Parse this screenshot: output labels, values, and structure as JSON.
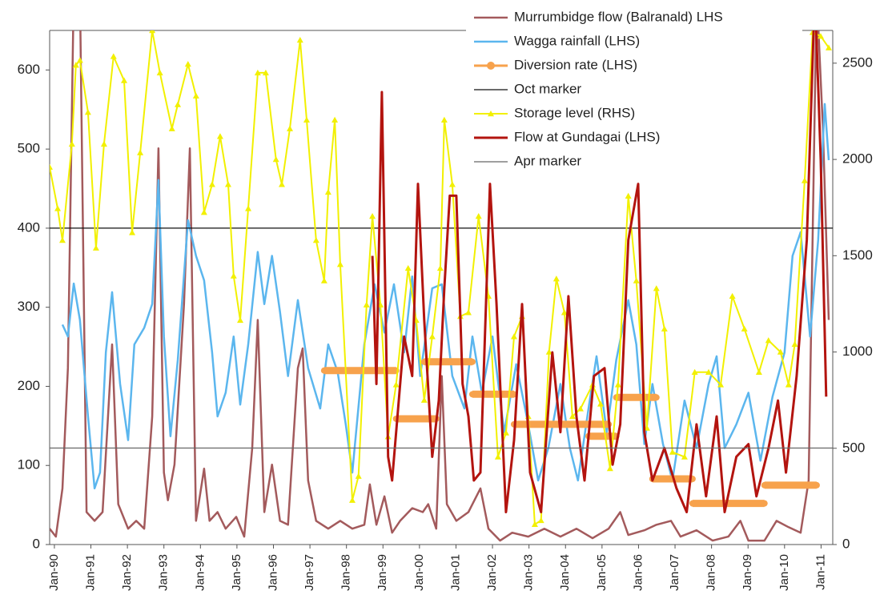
{
  "chart_data": {
    "type": "line",
    "xlim": [
      1989.87,
      2011.32
    ],
    "ylim": [
      0,
      650
    ],
    "y2lim": [
      0,
      2670
    ],
    "yticks": [
      0,
      100,
      200,
      300,
      400,
      500,
      600
    ],
    "y2ticks": [
      0,
      500,
      1000,
      1500,
      2000,
      2500
    ],
    "xticks": [
      {
        "value": 1990,
        "label": "Jan-90"
      },
      {
        "value": 1991,
        "label": "Jan-91"
      },
      {
        "value": 1992,
        "label": "Jan-92"
      },
      {
        "value": 1993,
        "label": "Jan-93"
      },
      {
        "value": 1994,
        "label": "Jan-94"
      },
      {
        "value": 1995,
        "label": "Jan-95"
      },
      {
        "value": 1996,
        "label": "Jan-96"
      },
      {
        "value": 1997,
        "label": "Jan-97"
      },
      {
        "value": 1998,
        "label": "Jan-98"
      },
      {
        "value": 1999,
        "label": "Jan-99"
      },
      {
        "value": 2000,
        "label": "Jan-00"
      },
      {
        "value": 2001,
        "label": "Jan-01"
      },
      {
        "value": 2002,
        "label": "Jan-02"
      },
      {
        "value": 2003,
        "label": "Jan-03"
      },
      {
        "value": 2004,
        "label": "Jan-04"
      },
      {
        "value": 2005,
        "label": "Jan-05"
      },
      {
        "value": 2006,
        "label": "Jan-06"
      },
      {
        "value": 2007,
        "label": "Jan-07"
      },
      {
        "value": 2008,
        "label": "Jan-08"
      },
      {
        "value": 2009,
        "label": "Jan-09"
      },
      {
        "value": 2010,
        "label": "Jan-10"
      },
      {
        "value": 2011,
        "label": "Jan-11"
      }
    ],
    "legend": "upper right",
    "series": [
      {
        "name": "Murrumbidge flow (Balranald) LHS",
        "color": "#a35a5c",
        "x": [
          1989.87,
          1990.04,
          1990.22,
          1990.37,
          1990.53,
          1990.7,
          1990.88,
          1991.1,
          1991.32,
          1991.58,
          1991.75,
          1992.02,
          1992.24,
          1992.46,
          1992.68,
          1992.85,
          1993.0,
          1993.11,
          1993.29,
          1993.55,
          1993.71,
          1993.88,
          1994.1,
          1994.25,
          1994.47,
          1994.69,
          1994.98,
          1995.2,
          1995.42,
          1995.57,
          1995.75,
          1995.96,
          1996.18,
          1996.4,
          1996.67,
          1996.8,
          1996.95,
          1997.17,
          1997.5,
          1997.83,
          1998.16,
          1998.49,
          1998.64,
          1998.82,
          1999.04,
          1999.25,
          1999.47,
          1999.8,
          2000.09,
          2000.24,
          2000.46,
          2000.61,
          2000.75,
          2001.01,
          2001.34,
          2001.67,
          2001.89,
          2002.21,
          2002.54,
          2002.98,
          2003.42,
          2003.86,
          2004.3,
          2004.74,
          2005.18,
          2005.5,
          2005.72,
          2006.16,
          2006.49,
          2006.89,
          2007.15,
          2007.59,
          2008.03,
          2008.46,
          2008.79,
          2009.01,
          2009.45,
          2009.78,
          2010.11,
          2010.44,
          2010.66,
          2010.88,
          2011.05,
          2011.21
        ],
        "values": [
          20,
          10,
          71,
          223,
          700,
          700,
          41,
          30,
          41,
          253,
          51,
          20,
          30,
          20,
          162,
          501,
          91,
          56,
          101,
          304,
          501,
          30,
          96,
          30,
          41,
          20,
          35,
          10,
          122,
          284,
          41,
          101,
          30,
          25,
          223,
          248,
          81,
          30,
          20,
          30,
          20,
          25,
          76,
          25,
          61,
          15,
          30,
          46,
          41,
          51,
          20,
          213,
          51,
          30,
          41,
          71,
          20,
          5,
          15,
          10,
          20,
          10,
          20,
          8,
          20,
          41,
          12,
          18,
          25,
          30,
          10,
          18,
          5,
          10,
          30,
          5,
          5,
          30,
          22,
          15,
          81,
          700,
          527,
          284
        ]
      },
      {
        "name": "Wagga rainfall (LHS)",
        "color": "#5bb6ee",
        "x": [
          1990.22,
          1990.37,
          1990.53,
          1990.7,
          1990.92,
          1991.1,
          1991.25,
          1991.41,
          1991.58,
          1991.8,
          1992.02,
          1992.19,
          1992.46,
          1992.68,
          1992.85,
          1993.0,
          1993.18,
          1993.38,
          1993.66,
          1993.88,
          1994.1,
          1994.32,
          1994.47,
          1994.69,
          1994.91,
          1995.09,
          1995.31,
          1995.57,
          1995.75,
          1995.96,
          1996.18,
          1996.4,
          1996.67,
          1996.95,
          1997.28,
          1997.5,
          1997.76,
          1997.98,
          1998.16,
          1998.49,
          1998.77,
          1999.04,
          1999.3,
          1999.58,
          1999.8,
          2000.02,
          2000.35,
          2000.61,
          2000.9,
          2001.23,
          2001.45,
          2001.71,
          2002.0,
          2002.32,
          2002.65,
          2002.98,
          2003.25,
          2003.53,
          2003.86,
          2004.12,
          2004.34,
          2004.63,
          2004.85,
          2005.13,
          2005.39,
          2005.72,
          2005.94,
          2006.16,
          2006.38,
          2006.67,
          2006.93,
          2007.26,
          2007.59,
          2007.92,
          2008.14,
          2008.36,
          2008.68,
          2009.01,
          2009.34,
          2009.67,
          2010.0,
          2010.22,
          2010.44,
          2010.7,
          2010.92,
          2011.1,
          2011.21
        ],
        "values": [
          278,
          263,
          330,
          284,
          162,
          71,
          91,
          243,
          319,
          203,
          132,
          253,
          274,
          304,
          461,
          263,
          137,
          233,
          410,
          365,
          334,
          243,
          162,
          192,
          263,
          177,
          253,
          370,
          304,
          365,
          294,
          213,
          309,
          223,
          172,
          253,
          218,
          152,
          91,
          253,
          329,
          268,
          329,
          243,
          339,
          213,
          324,
          329,
          213,
          172,
          263,
          192,
          263,
          142,
          228,
          152,
          81,
          122,
          203,
          122,
          81,
          172,
          238,
          142,
          233,
          309,
          253,
          127,
          203,
          127,
          81,
          182,
          122,
          203,
          238,
          122,
          152,
          192,
          106,
          187,
          243,
          365,
          395,
          263,
          385,
          557,
          486
        ]
      },
      {
        "name": "Diversion rate (LHS)",
        "color": "#f7a24c",
        "marker": "circle",
        "x": [
          1997.39,
          1999.36,
          1999.4,
          1999.36,
          2000.46,
          2000.3,
          2000.13,
          2001.45,
          2001.5,
          2001.45,
          2002.59,
          2002.6,
          2002.59,
          2005.18,
          2005.2,
          2004.63,
          2005.39,
          2005.5,
          2005.39,
          2006.49,
          2006.5,
          2006.38,
          2007.48,
          2007.5,
          2007.48,
          2009.45,
          2009.5,
          2009.45,
          2010.88
        ],
        "values": [
          220,
          220,
          null,
          159,
          159,
          null,
          231,
          231,
          null,
          190,
          190,
          null,
          152,
          152,
          null,
          137,
          137,
          null,
          186,
          186,
          null,
          83,
          83,
          null,
          52,
          52,
          null,
          75,
          75
        ]
      },
      {
        "name": "Oct marker",
        "color": "#111111",
        "x": [
          1989.87,
          2011.32
        ],
        "values": [
          400,
          400
        ]
      },
      {
        "name": "Storage level (RHS)",
        "color": "#f2f000",
        "axis": "y2",
        "marker": "triangle",
        "x": [
          1989.87,
          1990.09,
          1990.22,
          1990.48,
          1990.59,
          1990.7,
          1990.92,
          1991.14,
          1991.36,
          1991.62,
          1991.91,
          1992.13,
          1992.35,
          1992.68,
          1992.89,
          1993.22,
          1993.38,
          1993.66,
          1993.88,
          1994.1,
          1994.32,
          1994.54,
          1994.76,
          1994.91,
          1995.09,
          1995.31,
          1995.57,
          1995.79,
          1996.07,
          1996.23,
          1996.45,
          1996.73,
          1996.91,
          1997.17,
          1997.39,
          1997.5,
          1997.68,
          1997.83,
          1998.16,
          1998.33,
          1998.55,
          1998.71,
          1998.93,
          1999.14,
          1999.36,
          1999.69,
          1999.91,
          2000.13,
          2000.35,
          2000.57,
          2000.68,
          2000.9,
          2001.12,
          2001.34,
          2001.62,
          2001.89,
          2002.15,
          2002.37,
          2002.59,
          2002.81,
          2002.98,
          2003.16,
          2003.33,
          2003.55,
          2003.75,
          2003.97,
          2004.19,
          2004.41,
          2004.74,
          2004.96,
          2005.22,
          2005.44,
          2005.72,
          2005.94,
          2006.23,
          2006.49,
          2006.71,
          2006.93,
          2007.26,
          2007.54,
          2007.92,
          2008.25,
          2008.57,
          2008.9,
          2009.3,
          2009.56,
          2009.89,
          2010.11,
          2010.28,
          2010.55,
          2010.77,
          2010.99,
          2011.21
        ],
        "values": [
          1960,
          1745,
          1580,
          2080,
          2490,
          2515,
          2245,
          1540,
          2080,
          2535,
          2410,
          1620,
          2035,
          2670,
          2450,
          2160,
          2285,
          2495,
          2330,
          1725,
          1870,
          2120,
          1870,
          1395,
          1165,
          1745,
          2450,
          2450,
          2000,
          1870,
          2160,
          2620,
          2205,
          1580,
          1370,
          1830,
          2205,
          1455,
          230,
          355,
          1245,
          1705,
          1245,
          560,
          830,
          1435,
          1165,
          750,
          1080,
          1435,
          2205,
          1870,
          1185,
          1205,
          1705,
          1290,
          455,
          580,
          1080,
          1185,
          665,
          105,
          125,
          1000,
          1380,
          1205,
          665,
          705,
          830,
          730,
          395,
          830,
          1810,
          1370,
          605,
          1330,
          1120,
          480,
          455,
          895,
          895,
          830,
          1290,
          1120,
          895,
          1060,
          1000,
          830,
          1040,
          1890,
          2660,
          2640,
          2580
        ]
      },
      {
        "name": "Flow at Gundagai (LHS)",
        "color": "#b3140f",
        "x": [
          1998.71,
          1998.82,
          1998.97,
          1999.14,
          1999.25,
          1999.58,
          1999.8,
          1999.96,
          2000.13,
          2000.35,
          2000.53,
          2000.68,
          2000.83,
          2001.01,
          2001.18,
          2001.34,
          2001.49,
          2001.67,
          2001.93,
          2002.11,
          2002.37,
          2002.59,
          2002.81,
          2003.03,
          2003.33,
          2003.64,
          2003.86,
          2004.08,
          2004.3,
          2004.52,
          2004.78,
          2005.07,
          2005.29,
          2005.5,
          2005.72,
          2005.99,
          2006.16,
          2006.38,
          2006.71,
          2007.04,
          2007.32,
          2007.59,
          2007.85,
          2008.14,
          2008.36,
          2008.68,
          2009.01,
          2009.23,
          2009.56,
          2009.82,
          2010.04,
          2010.33,
          2010.61,
          2010.83,
          2010.99,
          2011.14
        ],
        "values": [
          365,
          203,
          572,
          111,
          81,
          263,
          213,
          456,
          284,
          111,
          182,
          324,
          441,
          441,
          203,
          162,
          81,
          91,
          456,
          304,
          41,
          132,
          304,
          91,
          41,
          243,
          142,
          314,
          162,
          81,
          213,
          223,
          101,
          152,
          385,
          456,
          142,
          81,
          122,
          71,
          41,
          152,
          61,
          162,
          41,
          111,
          127,
          61,
          122,
          182,
          91,
          213,
          385,
          700,
          486,
          187
        ]
      },
      {
        "name": "Apr marker",
        "color": "#666666",
        "x": [
          1989.87,
          2011.32
        ],
        "values": [
          122,
          122
        ]
      }
    ]
  }
}
